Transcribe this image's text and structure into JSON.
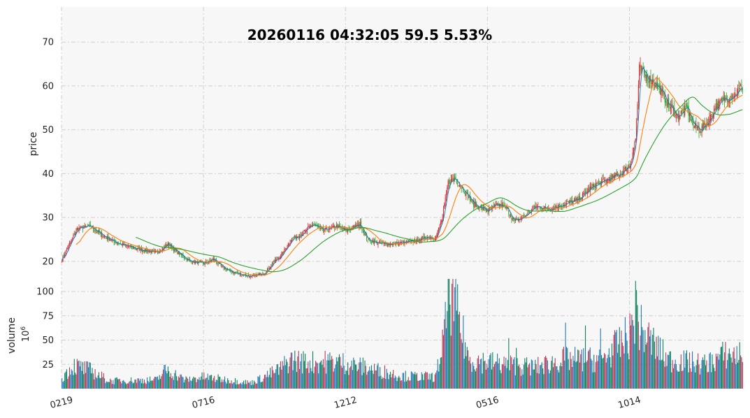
{
  "chart_data": [
    {
      "type": "candlestick",
      "title": "20260116 04:32:05   59.5 5.53%",
      "ylabel": "price",
      "ylim": [
        16,
        78
      ],
      "yticks": [
        20,
        30,
        40,
        50,
        60,
        70
      ],
      "grid": true,
      "xticks": [
        "0219",
        "0716",
        "1212",
        "0516",
        "1014"
      ],
      "colors": {
        "up": "#d62728",
        "down": "#2ca02c",
        "ma_short": "#1f77b4",
        "ma_mid": "#ff7f0e",
        "ma_long": "#2ca02c"
      },
      "close_keypoints": [
        [
          0,
          20.5
        ],
        [
          8,
          24.0
        ],
        [
          16,
          27.5
        ],
        [
          30,
          28.0
        ],
        [
          42,
          26.0
        ],
        [
          60,
          24.0
        ],
        [
          80,
          22.8
        ],
        [
          100,
          22.0
        ],
        [
          112,
          24.0
        ],
        [
          122,
          22.0
        ],
        [
          135,
          20.0
        ],
        [
          150,
          19.5
        ],
        [
          160,
          20.5
        ],
        [
          170,
          18.5
        ],
        [
          180,
          17.5
        ],
        [
          200,
          16.5
        ],
        [
          215,
          17.5
        ],
        [
          222,
          19.5
        ],
        [
          232,
          21.5
        ],
        [
          242,
          25.0
        ],
        [
          255,
          26.5
        ],
        [
          265,
          28.5
        ],
        [
          275,
          27.0
        ],
        [
          290,
          28.0
        ],
        [
          300,
          27.0
        ],
        [
          315,
          28.5
        ],
        [
          322,
          25.0
        ],
        [
          335,
          24.0
        ],
        [
          350,
          24.0
        ],
        [
          370,
          24.5
        ],
        [
          385,
          25.5
        ],
        [
          395,
          25.5
        ],
        [
          402,
          30.0
        ],
        [
          408,
          38.0
        ],
        [
          415,
          39.0
        ],
        [
          425,
          36.0
        ],
        [
          435,
          33.0
        ],
        [
          450,
          31.5
        ],
        [
          460,
          33.0
        ],
        [
          470,
          32.0
        ],
        [
          478,
          29.0
        ],
        [
          490,
          30.5
        ],
        [
          500,
          32.5
        ],
        [
          515,
          32.0
        ],
        [
          530,
          33.0
        ],
        [
          545,
          34.0
        ],
        [
          560,
          37.0
        ],
        [
          575,
          38.5
        ],
        [
          590,
          40.0
        ],
        [
          600,
          42.0
        ],
        [
          606,
          48.0
        ],
        [
          610,
          64.0
        ],
        [
          618,
          62.0
        ],
        [
          625,
          61.0
        ],
        [
          632,
          59.0
        ],
        [
          640,
          56.0
        ],
        [
          650,
          53.0
        ],
        [
          660,
          55.0
        ],
        [
          667,
          51.0
        ],
        [
          675,
          50.0
        ],
        [
          683,
          52.0
        ],
        [
          690,
          55.0
        ],
        [
          700,
          57.0
        ],
        [
          710,
          58.0
        ],
        [
          718,
          59.5
        ]
      ],
      "ma_long_start_index": 78
    },
    {
      "type": "bar",
      "ylabel": "volume",
      "yunit": "10^6",
      "ylim": [
        0,
        113
      ],
      "yticks": [
        25,
        50,
        75,
        100
      ],
      "bar_colors": [
        "#1f77b4",
        "#0a7e5a",
        "#b03a5b"
      ],
      "volume_keypoints": [
        [
          0,
          11
        ],
        [
          12,
          24
        ],
        [
          30,
          19
        ],
        [
          50,
          8
        ],
        [
          100,
          9
        ],
        [
          110,
          20
        ],
        [
          130,
          9
        ],
        [
          150,
          12
        ],
        [
          200,
          6
        ],
        [
          230,
          20
        ],
        [
          242,
          30
        ],
        [
          260,
          27
        ],
        [
          290,
          28
        ],
        [
          320,
          22
        ],
        [
          360,
          13
        ],
        [
          395,
          12
        ],
        [
          404,
          55
        ],
        [
          410,
          100
        ],
        [
          416,
          82
        ],
        [
          422,
          60
        ],
        [
          430,
          30
        ],
        [
          470,
          25
        ],
        [
          500,
          22
        ],
        [
          530,
          30
        ],
        [
          570,
          30
        ],
        [
          600,
          55
        ],
        [
          606,
          80
        ],
        [
          612,
          60
        ],
        [
          640,
          30
        ],
        [
          680,
          25
        ],
        [
          700,
          35
        ],
        [
          718,
          35
        ]
      ],
      "volume_spikes": [
        [
          408,
          113
        ],
        [
          412,
          108
        ],
        [
          606,
          111
        ],
        [
          608,
          86
        ],
        [
          532,
          68
        ],
        [
          553,
          65
        ],
        [
          569,
          62
        ],
        [
          472,
          52
        ],
        [
          480,
          42
        ]
      ]
    }
  ]
}
